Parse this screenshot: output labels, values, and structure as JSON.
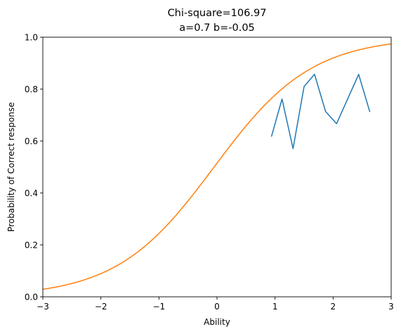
{
  "chart_data": {
    "type": "line",
    "title": [
      "Chi-square=106.97",
      "a=0.7 b=-0.05"
    ],
    "xlabel": "Ability",
    "ylabel": "Probability of Correct response",
    "xlim": [
      -3,
      3
    ],
    "ylim": [
      0,
      1
    ],
    "xticks": [
      -3,
      -2,
      -1,
      0,
      1,
      2,
      3
    ],
    "xtick_labels": [
      "−3",
      "−2",
      "−1",
      "0",
      "1",
      "2",
      "3"
    ],
    "yticks": [
      0,
      0.2,
      0.4,
      0.6,
      0.8,
      1.0
    ],
    "ytick_labels": [
      "0.0",
      "0.2",
      "0.4",
      "0.6",
      "0.8",
      "1.0"
    ],
    "grid": false,
    "series": [
      {
        "color": "#1f77b4",
        "kind": "observed",
        "x": [
          0.94,
          1.12,
          1.31,
          1.5,
          1.68,
          1.87,
          2.06,
          2.25,
          2.44,
          2.63
        ],
        "y": [
          0.619,
          0.762,
          0.571,
          0.81,
          0.857,
          0.714,
          0.667,
          0.762,
          0.857,
          0.714
        ]
      },
      {
        "color": "#ff7f0e",
        "kind": "logistic-curve",
        "a": 0.7,
        "b": -0.05,
        "scale": 1.7
      }
    ]
  }
}
